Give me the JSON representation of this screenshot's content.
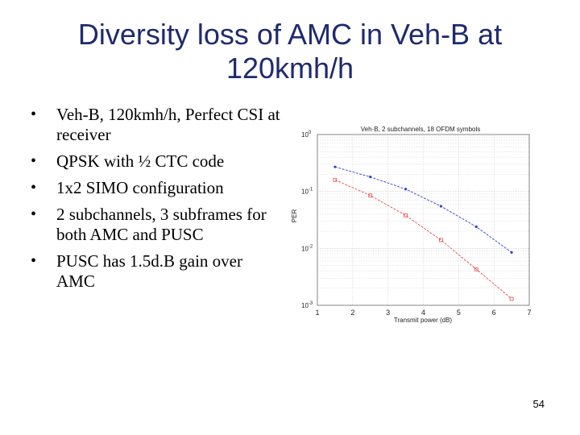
{
  "slide": {
    "title_line1": "Diversity loss of AMC in Veh-B at",
    "title_line2": "120kmh/h",
    "bullets": [
      "Veh-B, 120kmh/h, Perfect CSI at receiver",
      "QPSK with ½ CTC code",
      "1x2 SIMO configuration",
      "2 subchannels, 3 subframes for both AMC and PUSC",
      "PUSC has 1.5d.B gain over AMC"
    ],
    "page_number": "54"
  },
  "colors": {
    "title": "#1f2a6e",
    "series_amc": "#3344cc",
    "series_pusc": "#e05050",
    "grid": "#c8c8c8"
  },
  "chart_data": {
    "type": "line",
    "title": "Veh-B, 2 subchannels, 18 OFDM symbols",
    "xlabel": "Transmit power (dB)",
    "ylabel": "PER",
    "xlim": [
      1,
      7
    ],
    "ylim": [
      0.001,
      1
    ],
    "yscale": "log",
    "x_ticks": [
      "1",
      "2",
      "3",
      "4",
      "5",
      "6",
      "7"
    ],
    "y_ticks": [
      {
        "base": "10",
        "exp": "0",
        "value": 1
      },
      {
        "base": "10",
        "exp": "-1",
        "value": 0.1
      },
      {
        "base": "10",
        "exp": "-2",
        "value": 0.01
      },
      {
        "base": "10",
        "exp": "-3",
        "value": 0.001
      }
    ],
    "grid": true,
    "series": [
      {
        "color_key": "series_amc",
        "marker": "dot",
        "x": [
          1.5,
          2.5,
          3.5,
          4.5,
          5.5,
          6.5
        ],
        "y": [
          0.27,
          0.18,
          0.11,
          0.055,
          0.024,
          0.0085
        ]
      },
      {
        "color_key": "series_pusc",
        "marker": "square",
        "x": [
          1.5,
          2.5,
          3.5,
          4.5,
          5.5,
          6.5
        ],
        "y": [
          0.16,
          0.085,
          0.038,
          0.014,
          0.0043,
          0.0013
        ]
      }
    ]
  }
}
